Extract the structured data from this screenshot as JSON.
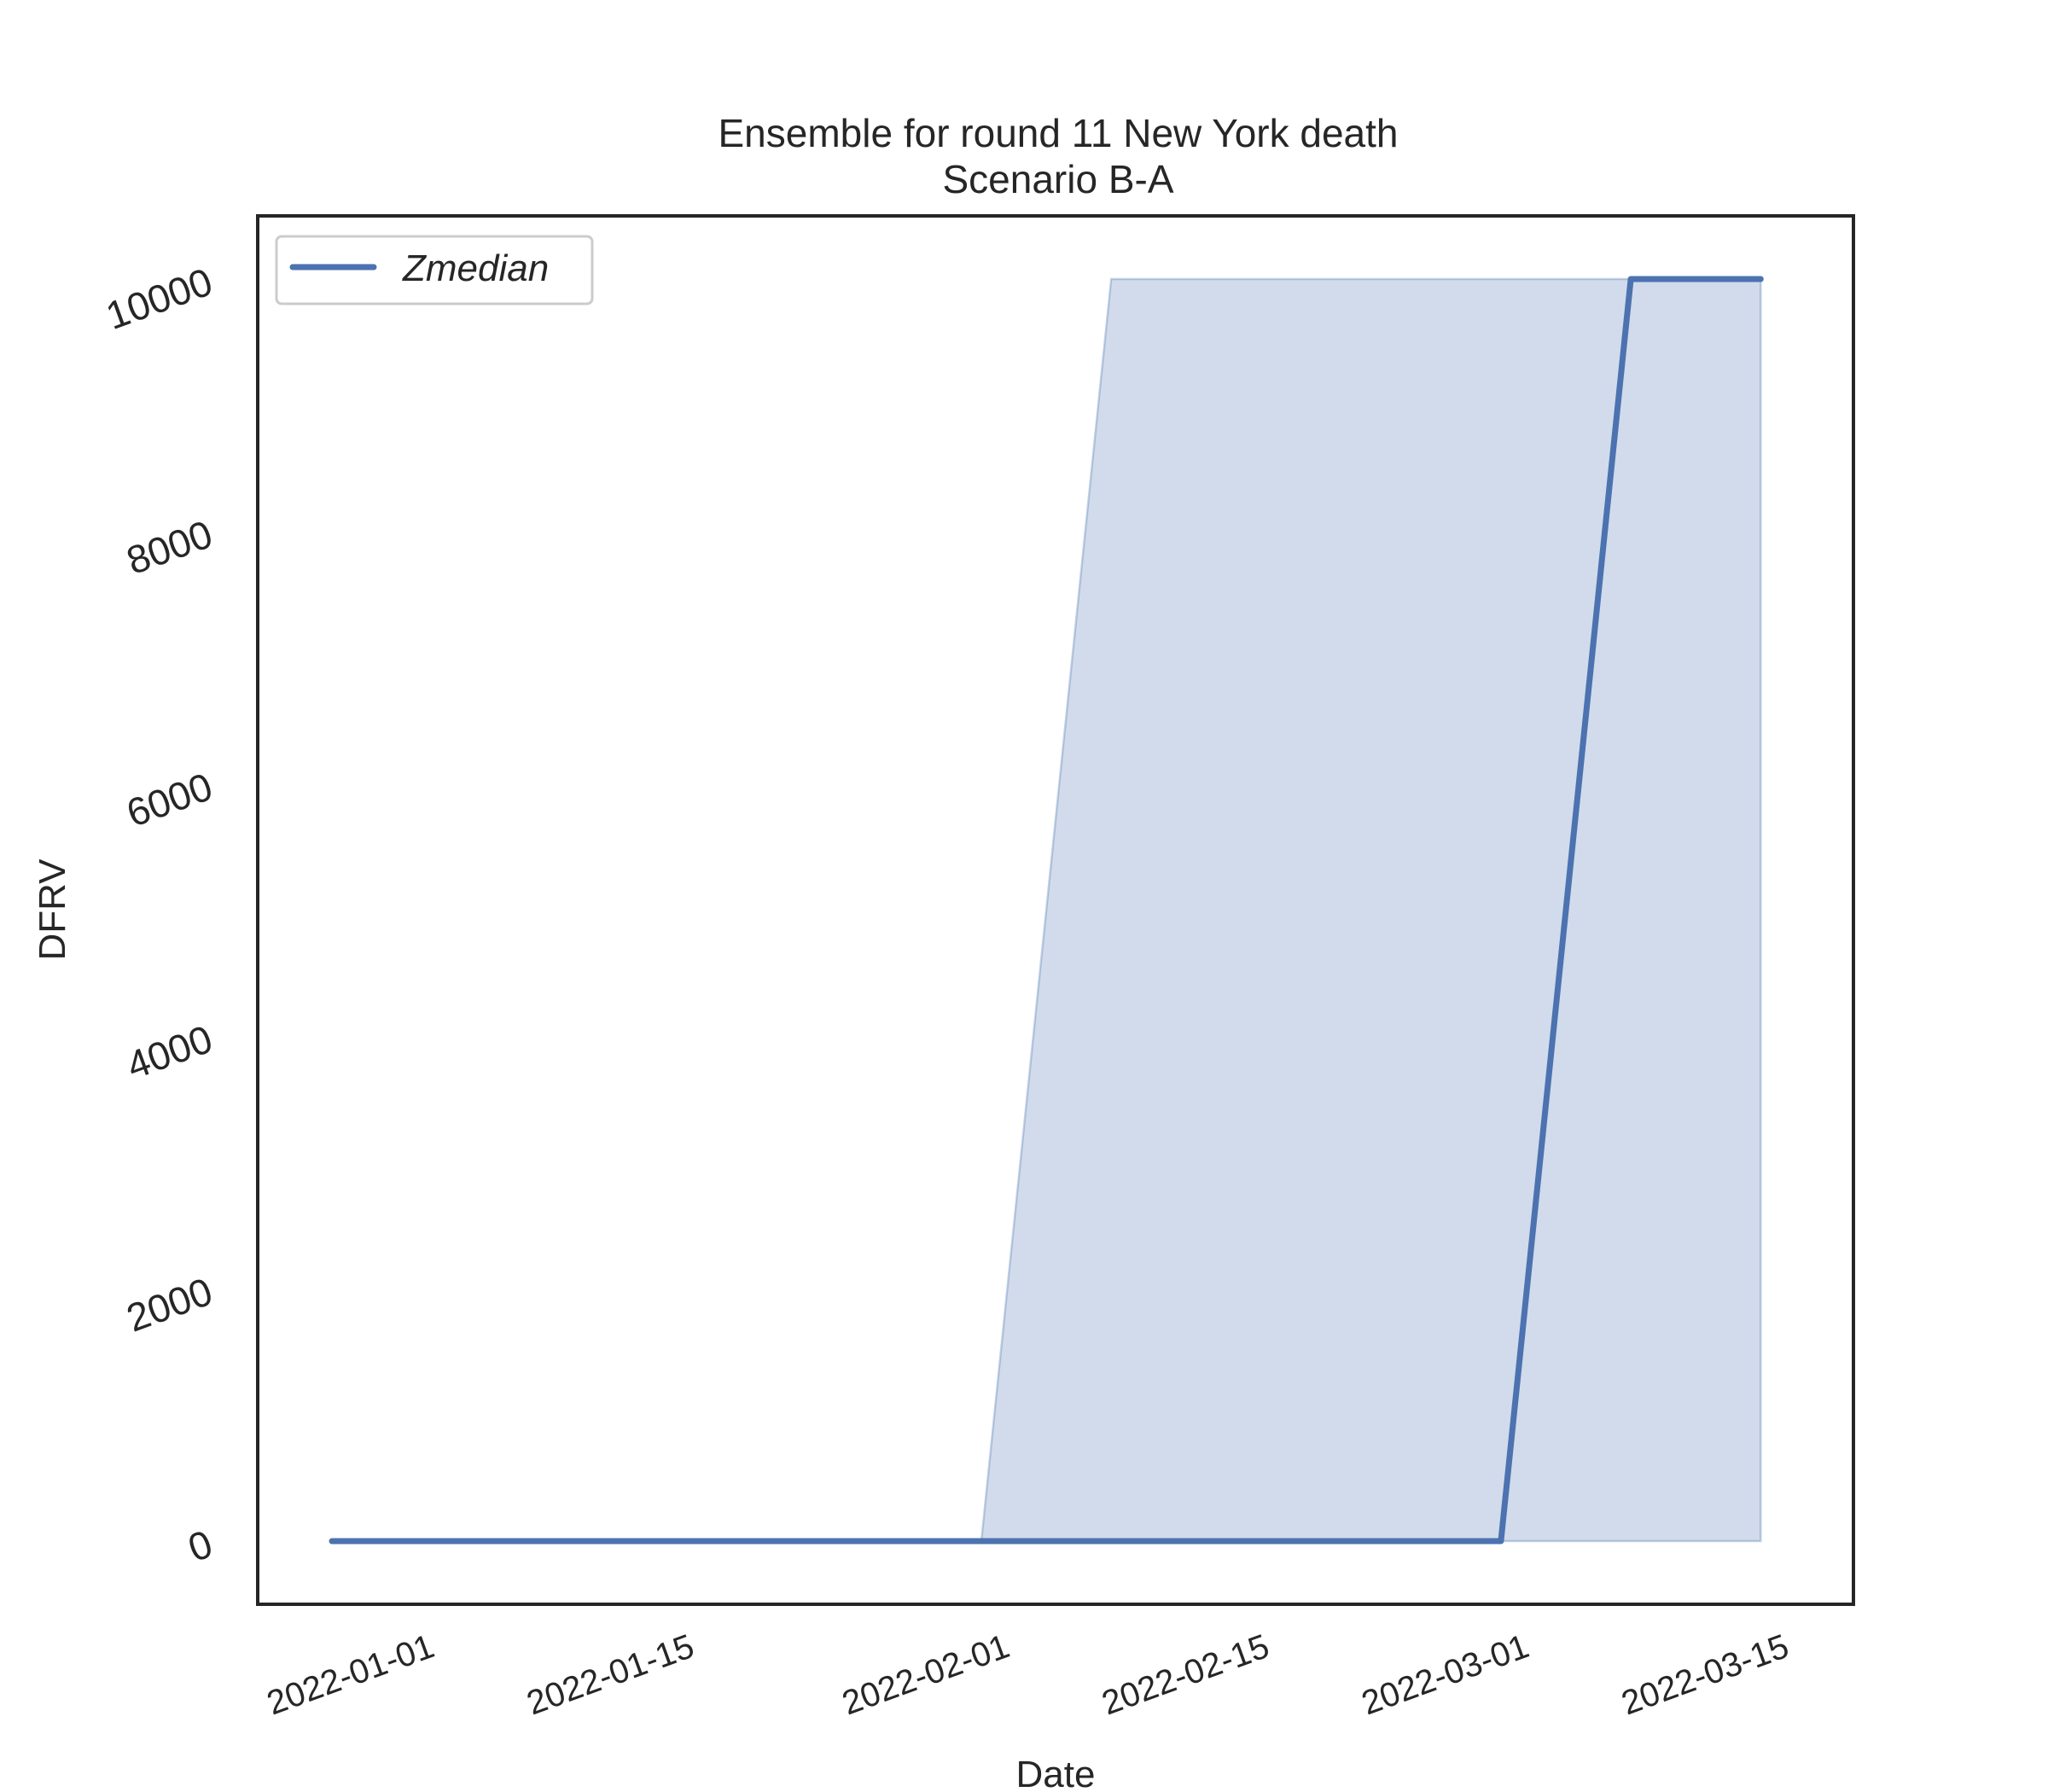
{
  "chart_data": {
    "type": "line",
    "title": "Ensemble for round 11 New York death",
    "subtitle": "Scenario B-A",
    "xlabel": "Date",
    "ylabel": "DFRV",
    "x_tick_labels": [
      "2022-01-01",
      "2022-01-15",
      "2022-02-01",
      "2022-02-15",
      "2022-03-01",
      "2022-03-15"
    ],
    "y_tick_labels": [
      "0",
      "2000",
      "4000",
      "6000",
      "8000",
      "10000"
    ],
    "ylim": [
      -500,
      10500
    ],
    "xlim": [
      "2021-12-22",
      "2022-03-18"
    ],
    "grid": false,
    "legend_position": "upper-left",
    "series": [
      {
        "name": "Zmedian",
        "x": [
          "2021-12-26",
          "2022-01-02",
          "2022-01-09",
          "2022-01-16",
          "2022-01-23",
          "2022-01-30",
          "2022-02-06",
          "2022-02-13",
          "2022-02-20",
          "2022-02-27",
          "2022-03-06",
          "2022-03-13"
        ],
        "y": [
          0,
          0,
          0,
          0,
          0,
          0,
          0,
          0,
          0,
          0,
          10000,
          10000
        ],
        "color": "#4c72b0"
      }
    ],
    "band": {
      "x": [
        "2021-12-26",
        "2022-01-02",
        "2022-01-09",
        "2022-01-16",
        "2022-01-23",
        "2022-01-30",
        "2022-02-06",
        "2022-02-13",
        "2022-02-20",
        "2022-02-27",
        "2022-03-06",
        "2022-03-13"
      ],
      "lower": [
        0,
        0,
        0,
        0,
        0,
        0,
        0,
        0,
        0,
        0,
        0,
        0
      ],
      "upper": [
        0,
        0,
        0,
        0,
        0,
        0,
        10000,
        10000,
        10000,
        10000,
        10000,
        10000
      ],
      "color": "#4c72b0"
    }
  }
}
